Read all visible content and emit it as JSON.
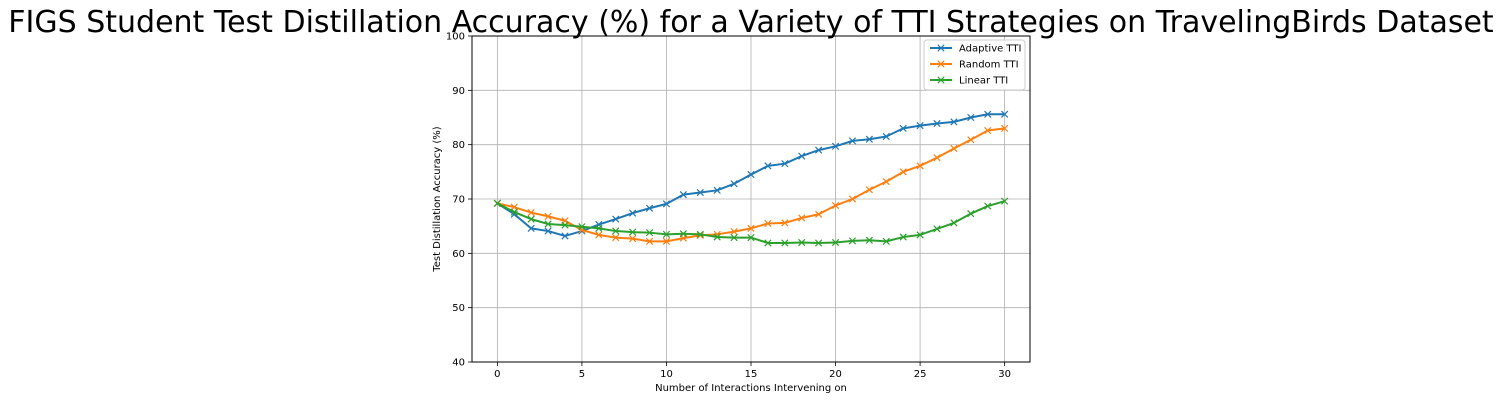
{
  "chart_data": {
    "type": "line",
    "title": "FIGS Student Test Distillation Accuracy (%) for a Variety of TTI Strategies on TravelingBirds Dataset",
    "xlabel": "Number of Interactions Intervening on",
    "ylabel": "Test Distillation Accuracy (%)",
    "xlim": [
      -1.5,
      31.5
    ],
    "ylim": [
      40,
      100
    ],
    "xticks": [
      0,
      5,
      10,
      15,
      20,
      25,
      30
    ],
    "yticks": [
      40,
      50,
      60,
      70,
      80,
      90,
      100
    ],
    "grid": true,
    "legend_position": "top-right",
    "x": [
      0,
      1,
      2,
      3,
      4,
      5,
      6,
      7,
      8,
      9,
      10,
      11,
      12,
      13,
      14,
      15,
      16,
      17,
      18,
      19,
      20,
      21,
      22,
      23,
      24,
      25,
      26,
      27,
      28,
      29,
      30
    ],
    "series": [
      {
        "name": "Adaptive TTI",
        "color": "#1f77b4",
        "marker": "x",
        "values": [
          69.2,
          67.2,
          64.6,
          64.1,
          63.2,
          64.1,
          65.3,
          66.3,
          67.4,
          68.3,
          69.1,
          70.8,
          71.2,
          71.6,
          72.8,
          74.5,
          76.1,
          76.5,
          77.9,
          79.0,
          79.7,
          80.7,
          81.0,
          81.5,
          83.0,
          83.5,
          83.9,
          84.2,
          85.0,
          85.6,
          85.6
        ]
      },
      {
        "name": "Random TTI",
        "color": "#ff7f0e",
        "marker": "x",
        "values": [
          69.2,
          68.5,
          67.5,
          66.8,
          66.0,
          64.3,
          63.4,
          62.9,
          62.7,
          62.2,
          62.2,
          62.8,
          63.3,
          63.5,
          64.0,
          64.6,
          65.5,
          65.6,
          66.5,
          67.2,
          68.8,
          70.0,
          71.7,
          73.2,
          75.0,
          76.1,
          77.6,
          79.3,
          80.9,
          82.6,
          83.0
        ]
      },
      {
        "name": "Linear TTI",
        "color": "#2ca02c",
        "marker": "x",
        "values": [
          69.2,
          67.6,
          66.3,
          65.4,
          65.2,
          64.9,
          64.6,
          64.1,
          63.9,
          63.8,
          63.5,
          63.6,
          63.5,
          63.0,
          62.9,
          62.9,
          61.9,
          61.9,
          62.0,
          61.9,
          62.0,
          62.3,
          62.4,
          62.2,
          63.0,
          63.4,
          64.5,
          65.6,
          67.3,
          68.7,
          69.6
        ]
      }
    ]
  }
}
